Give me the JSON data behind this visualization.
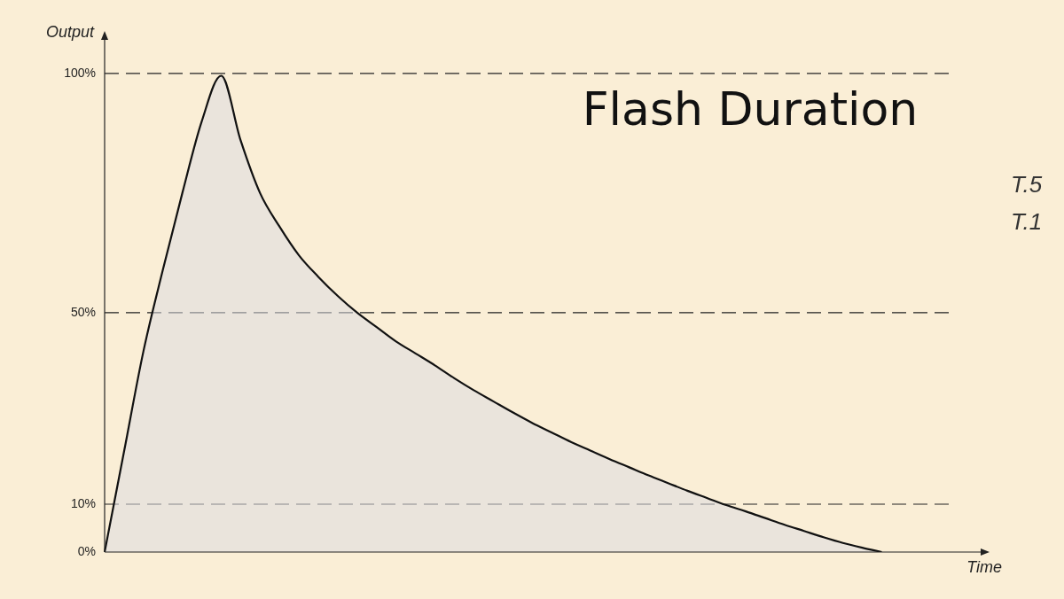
{
  "chart_data": {
    "type": "area",
    "title": "Flash Duration",
    "xlabel": "Time",
    "ylabel": "Output",
    "categories": [
      null,
      null,
      null,
      null,
      null,
      null,
      null,
      null,
      null,
      null,
      null,
      null,
      null,
      null,
      null,
      null,
      null,
      null,
      null,
      null,
      null,
      null,
      null,
      null,
      null,
      null,
      null,
      null,
      null,
      null,
      null,
      null,
      null,
      null,
      null,
      null,
      null,
      null,
      null,
      null,
      null,
      null,
      null,
      null,
      null,
      null
    ],
    "series": [
      {
        "color": "#111111",
        "values": [
          0,
          21,
          42,
          59,
          75,
          90,
          99.5,
          86,
          75,
          68,
          62,
          57.5,
          53.5,
          50,
          47,
          44,
          41.5,
          39,
          36.3,
          33.8,
          31.5,
          29.2,
          27,
          25,
          23,
          21.2,
          19.4,
          17.7,
          16,
          14.4,
          12.8,
          11.3,
          9.8,
          8.5,
          7.1,
          5.7,
          4.4,
          3.1,
          1.9,
          0.9,
          0,
          null,
          null,
          null,
          null,
          null
        ]
      }
    ],
    "ylim": [
      0,
      107
    ],
    "yticks": [
      {
        "value": 0,
        "label": "0%"
      },
      {
        "value": 10,
        "label": "10%"
      },
      {
        "value": 50,
        "label": "50%"
      },
      {
        "value": 100,
        "label": "100%"
      }
    ],
    "ref_lines": [
      {
        "axis": "y",
        "value": 10,
        "color": "#222222",
        "line_style": "dashed"
      },
      {
        "axis": "y",
        "value": 50,
        "color": "#222222",
        "line_style": "dashed"
      },
      {
        "axis": "y",
        "value": 100,
        "color": "#222222",
        "line_style": "dashed"
      }
    ],
    "annotations": [
      "T.5",
      "T.1"
    ],
    "tick_labels": "y",
    "grid": false,
    "legend": false
  }
}
